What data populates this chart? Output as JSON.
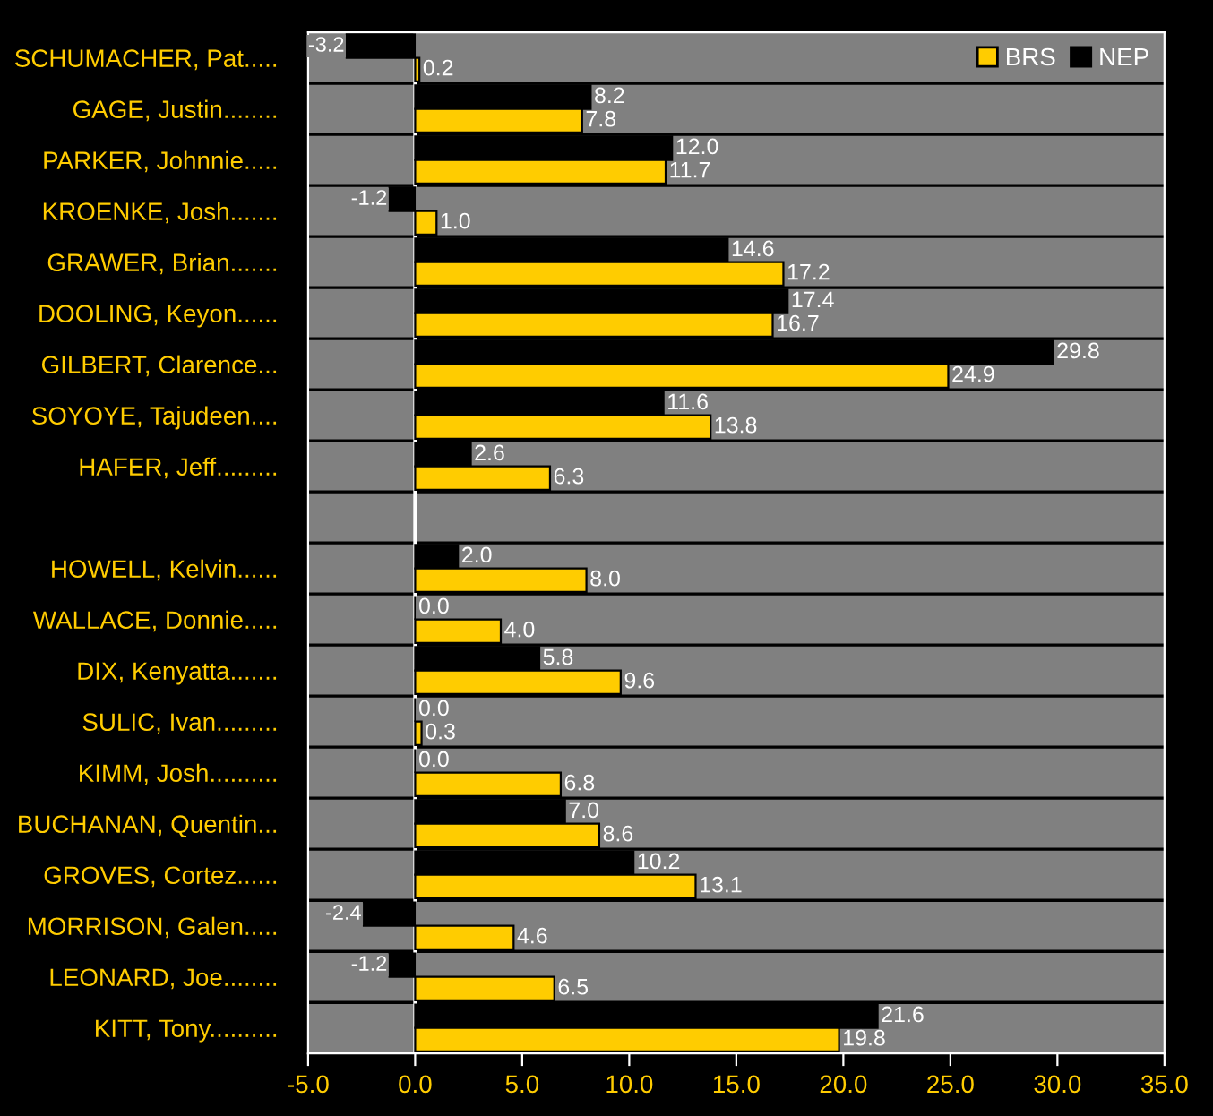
{
  "chart_data": {
    "type": "bar",
    "orientation": "horizontal",
    "categories": [
      "SCHUMACHER, Pat.....",
      "GAGE, Justin........",
      "PARKER, Johnnie.....",
      "KROENKE, Josh.......",
      "GRAWER, Brian.......",
      "DOOLING, Keyon......",
      "GILBERT, Clarence...",
      "SOYOYE, Tajudeen....",
      "HAFER, Jeff.........",
      null,
      "HOWELL, Kelvin......",
      "WALLACE, Donnie.....",
      "DIX, Kenyatta.......",
      "SULIC, Ivan.........",
      "KIMM, Josh..........",
      "BUCHANAN, Quentin...",
      "GROVES, Cortez......",
      "MORRISON, Galen.....",
      "LEONARD, Joe........",
      "KITT, Tony.........."
    ],
    "series": [
      {
        "name": "NEP",
        "color": "#000000",
        "values": [
          -3.2,
          8.2,
          12.0,
          -1.2,
          14.6,
          17.4,
          29.8,
          11.6,
          2.6,
          null,
          2.0,
          0.0,
          5.8,
          0.0,
          0.0,
          7.0,
          10.2,
          -2.4,
          -1.2,
          21.6
        ],
        "value_labels": [
          "-3.2",
          "8.2",
          "12.0",
          "-1.2",
          "14.6",
          "17.4",
          "29.8",
          "11.6",
          "2.6",
          null,
          "2.0",
          "0.0",
          "5.8",
          "0.0",
          "0.0",
          "7.0",
          "10.2",
          "-2.4",
          "-1.2",
          "21.6"
        ]
      },
      {
        "name": "BRS",
        "color": "#ffcc00",
        "values": [
          0.2,
          7.8,
          11.7,
          1.0,
          17.2,
          16.7,
          24.9,
          13.8,
          6.3,
          null,
          8.0,
          4.0,
          9.6,
          0.3,
          6.8,
          8.6,
          13.1,
          4.6,
          6.5,
          19.8
        ],
        "value_labels": [
          "0.2",
          "7.8",
          "11.7",
          "1.0",
          "17.2",
          "16.7",
          "24.9",
          "13.8",
          "6.3",
          null,
          "8.0",
          "4.0",
          "9.6",
          "0.3",
          "6.8",
          "8.6",
          "13.1",
          "4.6",
          "6.5",
          "19.8"
        ]
      }
    ],
    "xlim": [
      -5,
      35
    ],
    "xticks": [
      {
        "value": -5,
        "label": "-5.0"
      },
      {
        "value": 0,
        "label": "0.0"
      },
      {
        "value": 5,
        "label": "5.0"
      },
      {
        "value": 10,
        "label": "10.0"
      },
      {
        "value": 15,
        "label": "15.0"
      },
      {
        "value": 20,
        "label": "20.0"
      },
      {
        "value": 25,
        "label": "25.0"
      },
      {
        "value": 30,
        "label": "30.0"
      },
      {
        "value": 35,
        "label": "35.0"
      }
    ],
    "ref_lines": [
      {
        "axis": "x",
        "value": 0,
        "color": "#ffffff"
      }
    ],
    "grid": "y",
    "legend": "top right"
  }
}
